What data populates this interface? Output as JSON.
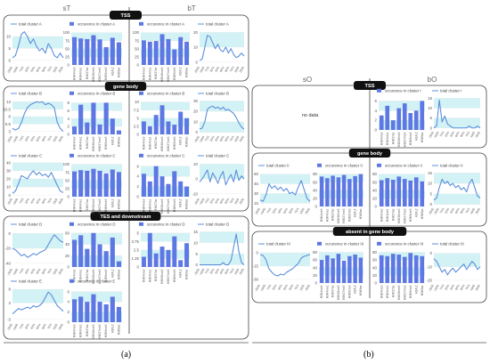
{
  "figure": {
    "caption_a": "(a)",
    "caption_b": "(b)",
    "column_labels": {
      "sT": "sT",
      "bT": "bT",
      "sO": "sO",
      "bO": "bO"
    },
    "no_data_text": "no data",
    "colors": {
      "line": "#5b8fdb",
      "bar": "#5d78e3",
      "band": "#d2f2f5",
      "title_bg": "#111111",
      "title_fg": "#ffffff",
      "frame": "#444444"
    }
  },
  "chart_data": [
    {
      "id": "a-tss-sT",
      "panel": "a",
      "section": "TSS",
      "column": "sT",
      "type": "line",
      "legend": "total cluster A",
      "yticks": [
        "10",
        "5",
        "0"
      ],
      "ylim": [
        -2,
        13
      ],
      "y": [
        1,
        2,
        6,
        11,
        12,
        10,
        7,
        9,
        6,
        4,
        5,
        3,
        7,
        5,
        2,
        1,
        3,
        1
      ],
      "xticks": [
        "-2000",
        "-1000",
        "TSS",
        "20%",
        "40%",
        "60%",
        "80%",
        "TES",
        "1000",
        "2000"
      ]
    },
    {
      "id": "a-tss-occ1",
      "panel": "a",
      "section": "TSS",
      "column": "sT",
      "type": "bar",
      "legend": "occurence in cluster A",
      "yticks": [
        "100",
        "75",
        "50",
        "25",
        "0"
      ],
      "ylim": [
        0,
        110
      ],
      "values": [
        86,
        82,
        80,
        92,
        79,
        55,
        84,
        70
      ],
      "categories": [
        "H3K4me3",
        "H3K4me1",
        "H3K27ac",
        "H3K36me3",
        "H3K27me3",
        "H3K9me3",
        "H2A.Z",
        "H3K9ac"
      ]
    },
    {
      "id": "a-tss-occ2",
      "panel": "a",
      "section": "TSS",
      "column": "bT",
      "type": "bar",
      "legend": "occurence in cluster A",
      "yticks": [
        "100",
        "75",
        "50",
        "25",
        "0"
      ],
      "ylim": [
        0,
        110
      ],
      "values": [
        76,
        72,
        74,
        95,
        80,
        48,
        86,
        72
      ],
      "categories": [
        "H3K4me3",
        "H3K4me1",
        "H3K27ac",
        "H3K36me3",
        "H3K27me3",
        "H3K9me3",
        "H2A.Z",
        "H3K9ac"
      ]
    },
    {
      "id": "a-tss-bT",
      "panel": "a",
      "section": "TSS",
      "column": "bT",
      "type": "line",
      "legend": "total cluster A",
      "yticks": [
        "20",
        "10",
        "0"
      ],
      "ylim": [
        -2,
        22
      ],
      "y": [
        1,
        2,
        10,
        18,
        17,
        13,
        9,
        12,
        8,
        7,
        10,
        6,
        9,
        5,
        3,
        4,
        6,
        4
      ],
      "xticks": [
        "-2000",
        "-1000",
        "TSS",
        "20%",
        "40%",
        "60%",
        "80%",
        "TES",
        "1000",
        "2000"
      ]
    },
    {
      "id": "a-gb-sT-B",
      "panel": "a",
      "section": "gene body",
      "column": "sT",
      "type": "line",
      "legend": "total cluster B",
      "yticks": [
        "13",
        "10.5",
        "8",
        "5.5",
        "3"
      ],
      "ylim": [
        2,
        14
      ],
      "y": [
        4,
        3.5,
        4,
        6,
        9,
        11,
        12,
        12.5,
        13,
        12.8,
        13,
        12,
        12.5,
        12,
        11,
        6,
        4,
        3
      ],
      "xticks": [
        "-2000",
        "-1000",
        "TSS",
        "20%",
        "40%",
        "60%",
        "80%",
        "TES",
        "1000",
        "2000"
      ]
    },
    {
      "id": "a-gb-occB1",
      "panel": "a",
      "section": "gene body",
      "column": "sT",
      "type": "bar",
      "legend": "occurence in cluster B",
      "yticks": [
        "8",
        "6",
        "4",
        "2",
        "0"
      ],
      "ylim": [
        0,
        9
      ],
      "values": [
        2,
        7.5,
        3,
        8,
        2.5,
        8,
        4,
        1
      ],
      "categories": [
        "H3K4me3",
        "H3K4me1",
        "H3K27ac",
        "H3K36me3",
        "H3K27me3",
        "H3K9me3",
        "H2A.Z",
        "H3K9ac"
      ]
    },
    {
      "id": "a-gb-occB2",
      "panel": "a",
      "section": "gene body",
      "column": "bT",
      "type": "bar",
      "legend": "occurence in cluster B",
      "yticks": [
        "10",
        "7.5",
        "5",
        "2.5",
        "0"
      ],
      "ylim": [
        0,
        11
      ],
      "values": [
        4,
        2.5,
        6,
        9,
        4,
        3,
        7,
        5
      ],
      "categories": [
        "H3K4me3",
        "H3K4me1",
        "H3K27ac",
        "H3K36me3",
        "H3K27me3",
        "H3K9me3",
        "H2A.Z",
        "H3K9ac"
      ]
    },
    {
      "id": "a-gb-bT-B",
      "panel": "a",
      "section": "gene body",
      "column": "bT",
      "type": "line",
      "legend": "total cluster B",
      "yticks": [
        "30",
        "20",
        "10",
        "0"
      ],
      "ylim": [
        -2,
        32
      ],
      "y": [
        3,
        4,
        10,
        22,
        24,
        25,
        23,
        24,
        22,
        24,
        21,
        22,
        20,
        18,
        14,
        9,
        5,
        3
      ],
      "xticks": [
        "-2000",
        "-1000",
        "TSS",
        "20%",
        "40%",
        "60%",
        "80%",
        "TES",
        "1000",
        "2000"
      ]
    },
    {
      "id": "a-gb-sT-C",
      "panel": "a",
      "section": "gene body",
      "column": "sT",
      "type": "line",
      "legend": "total cluster C",
      "yticks": [
        "40",
        "30",
        "20",
        "10",
        "0"
      ],
      "ylim": [
        -2,
        42
      ],
      "y": [
        2,
        5,
        14,
        24,
        22,
        20,
        26,
        30,
        25,
        28,
        24,
        26,
        22,
        28,
        20,
        12,
        5,
        3
      ],
      "xticks": [
        "-2000",
        "-1000",
        "TSS",
        "20%",
        "40%",
        "60%",
        "80%",
        "TES",
        "1000",
        "2000"
      ]
    },
    {
      "id": "a-gb-occC1",
      "panel": "a",
      "section": "gene body",
      "column": "sT",
      "type": "bar",
      "legend": "occurence in cluster C",
      "yticks": [
        "100",
        "75",
        "50",
        "25",
        "0"
      ],
      "ylim": [
        0,
        110
      ],
      "values": [
        78,
        82,
        80,
        86,
        80,
        72,
        84,
        76
      ],
      "categories": [
        "H3K4me3",
        "H3K4me1",
        "H3K27ac",
        "H3K36me3",
        "H3K27me3",
        "H3K9me3",
        "H2A.Z",
        "H3K9ac"
      ]
    },
    {
      "id": "a-gb-occC2",
      "panel": "a",
      "section": "gene body",
      "column": "bT",
      "type": "bar",
      "legend": "occurence in cluster C",
      "yticks": [
        "6",
        "4",
        "2",
        "0"
      ],
      "ylim": [
        0,
        7
      ],
      "values": [
        4.5,
        3,
        6,
        4,
        2.5,
        5,
        3,
        2
      ],
      "categories": [
        "H3K4me3",
        "H3K4me1",
        "H3K27ac",
        "H3K36me3",
        "H3K27me3",
        "H3K9me3",
        "H2A.Z",
        "H3K9ac"
      ]
    },
    {
      "id": "a-gb-bT-C",
      "panel": "a",
      "section": "gene body",
      "column": "bT",
      "type": "line",
      "legend": "total cluster C",
      "yticks": [
        "10",
        "0",
        "-10"
      ],
      "ylim": [
        -12,
        12
      ],
      "y": [
        -2,
        0,
        3,
        6,
        -2,
        4,
        1,
        -3,
        2,
        5,
        -4,
        0,
        3,
        -2,
        6,
        -1,
        2,
        0
      ],
      "xticks": [
        "-2000",
        "-1000",
        "TSS",
        "20%",
        "40%",
        "60%",
        "80%",
        "TES",
        "1000",
        "2000"
      ]
    },
    {
      "id": "a-tes-sT-D",
      "panel": "a",
      "section": "TES and downstream",
      "column": "sT",
      "type": "line",
      "legend": "total cluster D",
      "yticks": [
        "0",
        "-20",
        "-40"
      ],
      "ylim": [
        -45,
        5
      ],
      "y": [
        -20,
        -22,
        -26,
        -30,
        -28,
        -32,
        -30,
        -27,
        -29,
        -26,
        -24,
        -22,
        -15,
        -8,
        -2,
        -6,
        -10,
        -12
      ],
      "xticks": [
        "-2000",
        "-1000",
        "TSS",
        "20%",
        "40%",
        "60%",
        "80%",
        "TES",
        "1000",
        "2000"
      ]
    },
    {
      "id": "a-tes-occD1",
      "panel": "a",
      "section": "TES and downstream",
      "column": "sT",
      "type": "bar",
      "legend": "occurence in cluster D",
      "yticks": [
        "60",
        "40",
        "20",
        "0"
      ],
      "ylim": [
        0,
        66
      ],
      "values": [
        48,
        56,
        32,
        60,
        40,
        28,
        52,
        10
      ],
      "categories": [
        "H3K4me3",
        "H3K4me1",
        "H3K27ac",
        "H3K36me3",
        "H3K27me3",
        "H3K9me3",
        "H2A.Z",
        "H3K9ac"
      ]
    },
    {
      "id": "a-tes-occD2",
      "panel": "a",
      "section": "TES and downstream",
      "column": "bT",
      "type": "bar",
      "legend": "occurence in cluster D",
      "yticks": [
        "5",
        "3.75",
        "2.5",
        "1.25",
        "0"
      ],
      "ylim": [
        0,
        5.5
      ],
      "values": [
        1.5,
        5,
        2,
        3,
        2.5,
        4.5,
        1,
        3.5
      ],
      "categories": [
        "H3K4me3",
        "H3K4me1",
        "H3K27ac",
        "H3K36me3",
        "H3K27me3",
        "H3K9me3",
        "H2A.Z",
        "H3K9ac"
      ]
    },
    {
      "id": "a-tes-bT-D",
      "panel": "a",
      "section": "TES and downstream",
      "column": "bT",
      "type": "line",
      "legend": "total cluster D",
      "yticks": [
        "15",
        "10",
        "5",
        "0"
      ],
      "ylim": [
        -1,
        16
      ],
      "y": [
        0,
        0,
        0,
        0,
        0,
        0,
        0,
        0,
        0,
        1,
        0,
        0,
        2,
        8,
        14,
        6,
        1,
        0
      ],
      "xticks": [
        "-2000",
        "-1000",
        "TSS",
        "20%",
        "40%",
        "60%",
        "80%",
        "TES",
        "1000",
        "2000"
      ]
    },
    {
      "id": "a-tes-sT-E",
      "panel": "a",
      "section": "TES and downstream",
      "column": "sT",
      "type": "line",
      "legend": "total cluster E",
      "yticks": [
        "8",
        "3",
        "-3"
      ],
      "ylim": [
        -4,
        9
      ],
      "y": [
        -1,
        0,
        1,
        0.5,
        1,
        1.5,
        1,
        2,
        1.5,
        2,
        3,
        5,
        7,
        6,
        4,
        2,
        1,
        0
      ],
      "xticks": [
        "-2000",
        "-1000",
        "TSS",
        "20%",
        "40%",
        "60%",
        "80%",
        "TES",
        "1000",
        "2000"
      ]
    },
    {
      "id": "a-tes-occE1",
      "panel": "a",
      "section": "TES and downstream",
      "column": "sT",
      "type": "bar",
      "legend": "occurence in cluster E",
      "yticks": [
        "6",
        "4",
        "2",
        "0"
      ],
      "ylim": [
        0,
        7
      ],
      "values": [
        4.5,
        5,
        4,
        5.5,
        4,
        3.5,
        5,
        3
      ],
      "categories": [
        "H3K4me3",
        "H3K4me1",
        "H3K27ac",
        "H3K36me3",
        "H3K27me3",
        "H3K9me3",
        "H2A.Z",
        "H3K9ac"
      ]
    },
    {
      "id": "b-tss-sO",
      "panel": "b",
      "section": "TSS",
      "column": "sO",
      "type": "empty",
      "legend": ""
    },
    {
      "id": "b-tss-occI",
      "panel": "b",
      "section": "TSS",
      "column": "bO",
      "type": "bar",
      "legend": "occurence in cluster I",
      "yticks": [
        "6",
        "4",
        "2",
        "0"
      ],
      "ylim": [
        0,
        7
      ],
      "values": [
        3,
        5,
        2,
        4.5,
        5.5,
        3.5,
        4,
        6
      ],
      "categories": [
        "H3K4me3",
        "H3K4me1",
        "H3K27ac",
        "H3K36me3",
        "H3K27me3",
        "H3K9me3",
        "H2A.Z",
        "H3K9ac"
      ]
    },
    {
      "id": "b-tss-bO",
      "panel": "b",
      "section": "TSS",
      "column": "bO",
      "type": "line",
      "legend": "total cluster I",
      "yticks": [
        "15",
        "10",
        "5",
        "0"
      ],
      "ylim": [
        -1,
        16
      ],
      "y": [
        0,
        1,
        14,
        3,
        6,
        2,
        1,
        0,
        0,
        0,
        0,
        0,
        0,
        1,
        0,
        0,
        1,
        0
      ],
      "xticks": [
        "-2000",
        "-1000",
        "TSS",
        "20%",
        "40%",
        "60%",
        "80%",
        "TES",
        "1000",
        "2000"
      ]
    },
    {
      "id": "b-gb-sO-II",
      "panel": "b",
      "section": "gene body",
      "column": "sO",
      "type": "line",
      "legend": "total cluster II",
      "yticks": [
        "60",
        "45",
        "30",
        "15"
      ],
      "ylim": [
        10,
        65
      ],
      "y": [
        20,
        18,
        28,
        45,
        38,
        42,
        36,
        40,
        34,
        38,
        30,
        32,
        28,
        40,
        50,
        36,
        22,
        18
      ],
      "xticks": [
        "-2000",
        "-1000",
        "TSS",
        "20%",
        "40%",
        "60%",
        "80%",
        "TES",
        "1000",
        "2000"
      ]
    },
    {
      "id": "b-gb-occII1",
      "panel": "b",
      "section": "gene body",
      "column": "sO",
      "type": "bar",
      "legend": "occurence in cluster II",
      "yticks": [
        "80",
        "60",
        "40",
        "20",
        "0"
      ],
      "ylim": [
        0,
        88
      ],
      "values": [
        74,
        70,
        76,
        72,
        78,
        68,
        75,
        80
      ],
      "categories": [
        "H3K4me3",
        "H3K4me1",
        "H3K27ac",
        "H3K36me3",
        "H3K27me3",
        "H3K9me3",
        "H2A.Z",
        "H3K9ac"
      ]
    },
    {
      "id": "b-gb-occII2",
      "panel": "b",
      "section": "gene body",
      "column": "bO",
      "type": "bar",
      "legend": "occurence in cluster II",
      "yticks": [
        "80",
        "60",
        "40",
        "20",
        "0"
      ],
      "ylim": [
        0,
        88
      ],
      "values": [
        65,
        70,
        66,
        74,
        68,
        64,
        72,
        62
      ],
      "categories": [
        "H3K4me3",
        "H3K4me1",
        "H3K27ac",
        "H3K36me3",
        "H3K27me3",
        "H3K9me3",
        "H2A.Z",
        "H3K9ac"
      ]
    },
    {
      "id": "b-gb-bO-II",
      "panel": "b",
      "section": "gene body",
      "column": "bO",
      "type": "line",
      "legend": "total cluster II",
      "yticks": [
        "15",
        "10",
        "5",
        "0"
      ],
      "ylim": [
        -1,
        16
      ],
      "y": [
        2,
        3,
        8,
        12,
        10,
        11,
        9,
        10,
        8,
        9,
        7,
        8,
        6,
        10,
        12,
        8,
        4,
        3
      ],
      "xticks": [
        "-2000",
        "-1000",
        "TSS",
        "20%",
        "40%",
        "60%",
        "80%",
        "TES",
        "1000",
        "2000"
      ]
    },
    {
      "id": "b-ab-sO-III",
      "panel": "b",
      "section": "absent in gene body",
      "column": "sO",
      "type": "line",
      "legend": "total cluster III",
      "yticks": [
        "0",
        "-15",
        "-30"
      ],
      "ylim": [
        -34,
        4
      ],
      "y": [
        -2,
        -3,
        -8,
        -18,
        -22,
        -25,
        -26,
        -24,
        -25,
        -22,
        -20,
        -18,
        -15,
        -12,
        -6,
        -4,
        -3,
        -2
      ],
      "xticks": [
        "-2000",
        "-1000",
        "TSS",
        "20%",
        "40%",
        "60%",
        "80%",
        "TES",
        "1000",
        "2000"
      ]
    },
    {
      "id": "b-ab-occIII1",
      "panel": "b",
      "section": "absent in gene body",
      "column": "sO",
      "type": "bar",
      "legend": "occurence in cluster III",
      "yticks": [
        "80",
        "60",
        "40",
        "20",
        "0"
      ],
      "ylim": [
        0,
        88
      ],
      "values": [
        60,
        72,
        64,
        76,
        58,
        70,
        74,
        66
      ],
      "categories": [
        "H3K4me3",
        "H3K4me1",
        "H3K27ac",
        "H3K36me3",
        "H3K27me3",
        "H3K9me3",
        "H2A.Z",
        "H3K9ac"
      ]
    },
    {
      "id": "b-ab-occIII2",
      "panel": "b",
      "section": "absent in gene body",
      "column": "bO",
      "type": "bar",
      "legend": "occurence in cluster III",
      "yticks": [
        "80",
        "60",
        "40",
        "20",
        "0"
      ],
      "ylim": [
        0,
        88
      ],
      "values": [
        72,
        70,
        76,
        74,
        68,
        78,
        72,
        70
      ],
      "categories": [
        "H3K4me3",
        "H3K4me1",
        "H3K27ac",
        "H3K36me3",
        "H3K27me3",
        "H3K9me3",
        "H2A.Z",
        "H3K9ac"
      ]
    },
    {
      "id": "b-ab-bO-III",
      "panel": "b",
      "section": "absent in gene body",
      "column": "bO",
      "type": "line",
      "legend": "total cluster III",
      "yticks": [
        "0",
        "-10",
        "-20"
      ],
      "ylim": [
        -22,
        3
      ],
      "y": [
        -4,
        -6,
        -10,
        -14,
        -12,
        -16,
        -13,
        -11,
        -14,
        -12,
        -10,
        -8,
        -12,
        -9,
        -6,
        -8,
        -12,
        -10
      ],
      "xticks": [
        "-2000",
        "-1000",
        "TSS",
        "20%",
        "40%",
        "60%",
        "80%",
        "TES",
        "1000",
        "2000"
      ]
    }
  ]
}
